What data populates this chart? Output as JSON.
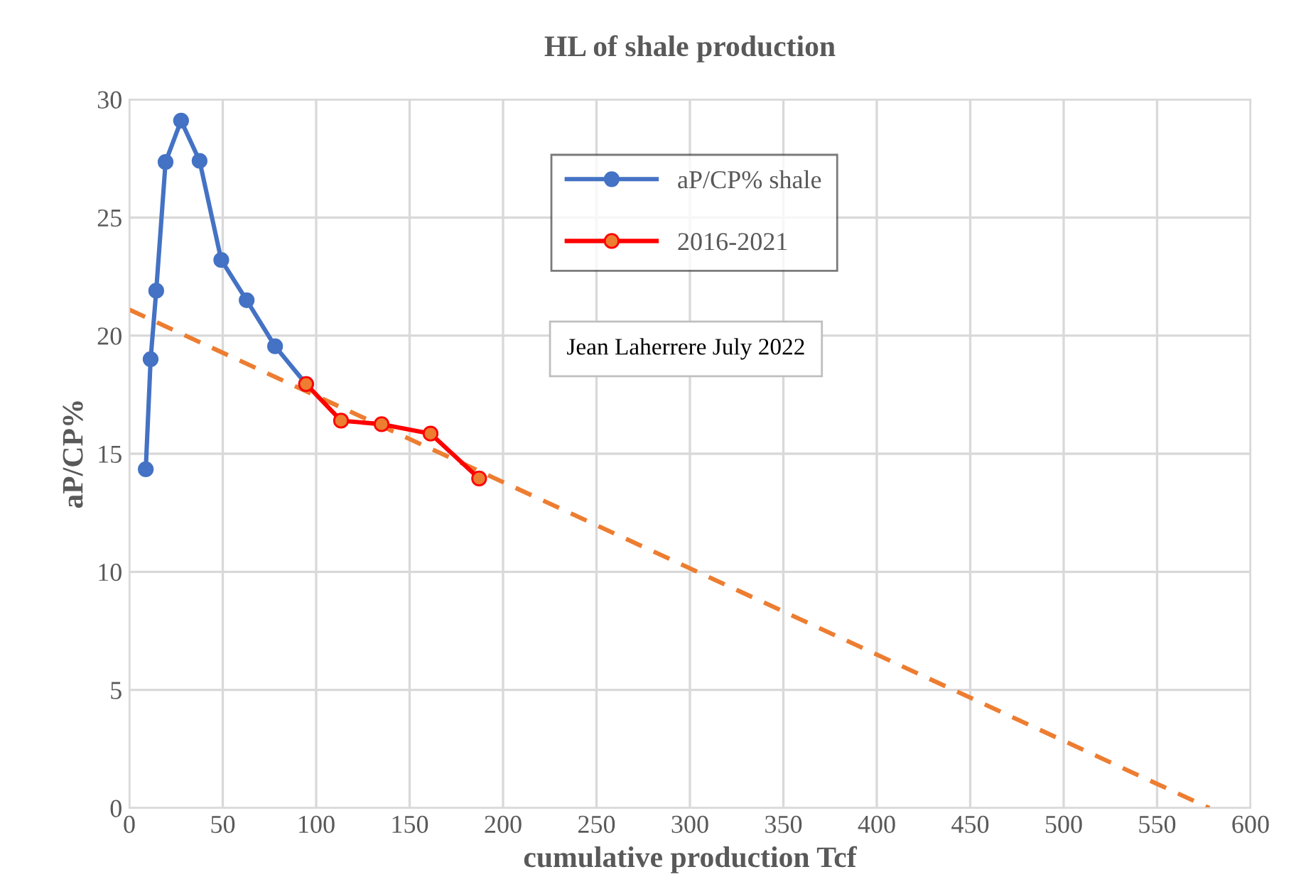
{
  "chart_data": {
    "type": "line",
    "title": "HL of shale production",
    "xlabel": "cumulative production Tcf",
    "ylabel": "aP/CP%",
    "xlim": [
      0,
      600
    ],
    "xticks": [
      0,
      50,
      100,
      150,
      200,
      250,
      300,
      350,
      400,
      450,
      500,
      550,
      600
    ],
    "ylim": [
      0,
      30
    ],
    "yticks": [
      0,
      5,
      10,
      15,
      20,
      25,
      30
    ],
    "grid": true,
    "legend": "top",
    "marker": "circle",
    "series": [
      {
        "name": "aP/CP% shale",
        "color": "#4472c4",
        "x": [
          8.8,
          11.4,
          14.4,
          19.4,
          27.7,
          37.6,
          49.2,
          62.8,
          78,
          94.6
        ],
        "values": [
          14.34,
          19.0,
          21.9,
          27.35,
          29.1,
          27.4,
          23.2,
          21.5,
          19.55,
          17.95
        ]
      },
      {
        "name": "2016-2021",
        "color": "#ff0000",
        "x": [
          94.6,
          113.3,
          135,
          161.2,
          187.2
        ],
        "values": [
          17.95,
          16.4,
          16.25,
          15.85,
          13.95
        ]
      },
      {
        "color": "#ed7d31",
        "x": [
          0,
          578
        ],
        "values": [
          21.1,
          0
        ],
        "marker": "none",
        "line_style": "dashed"
      }
    ],
    "annotations": [
      "Jean Laherrere July 2022"
    ]
  }
}
